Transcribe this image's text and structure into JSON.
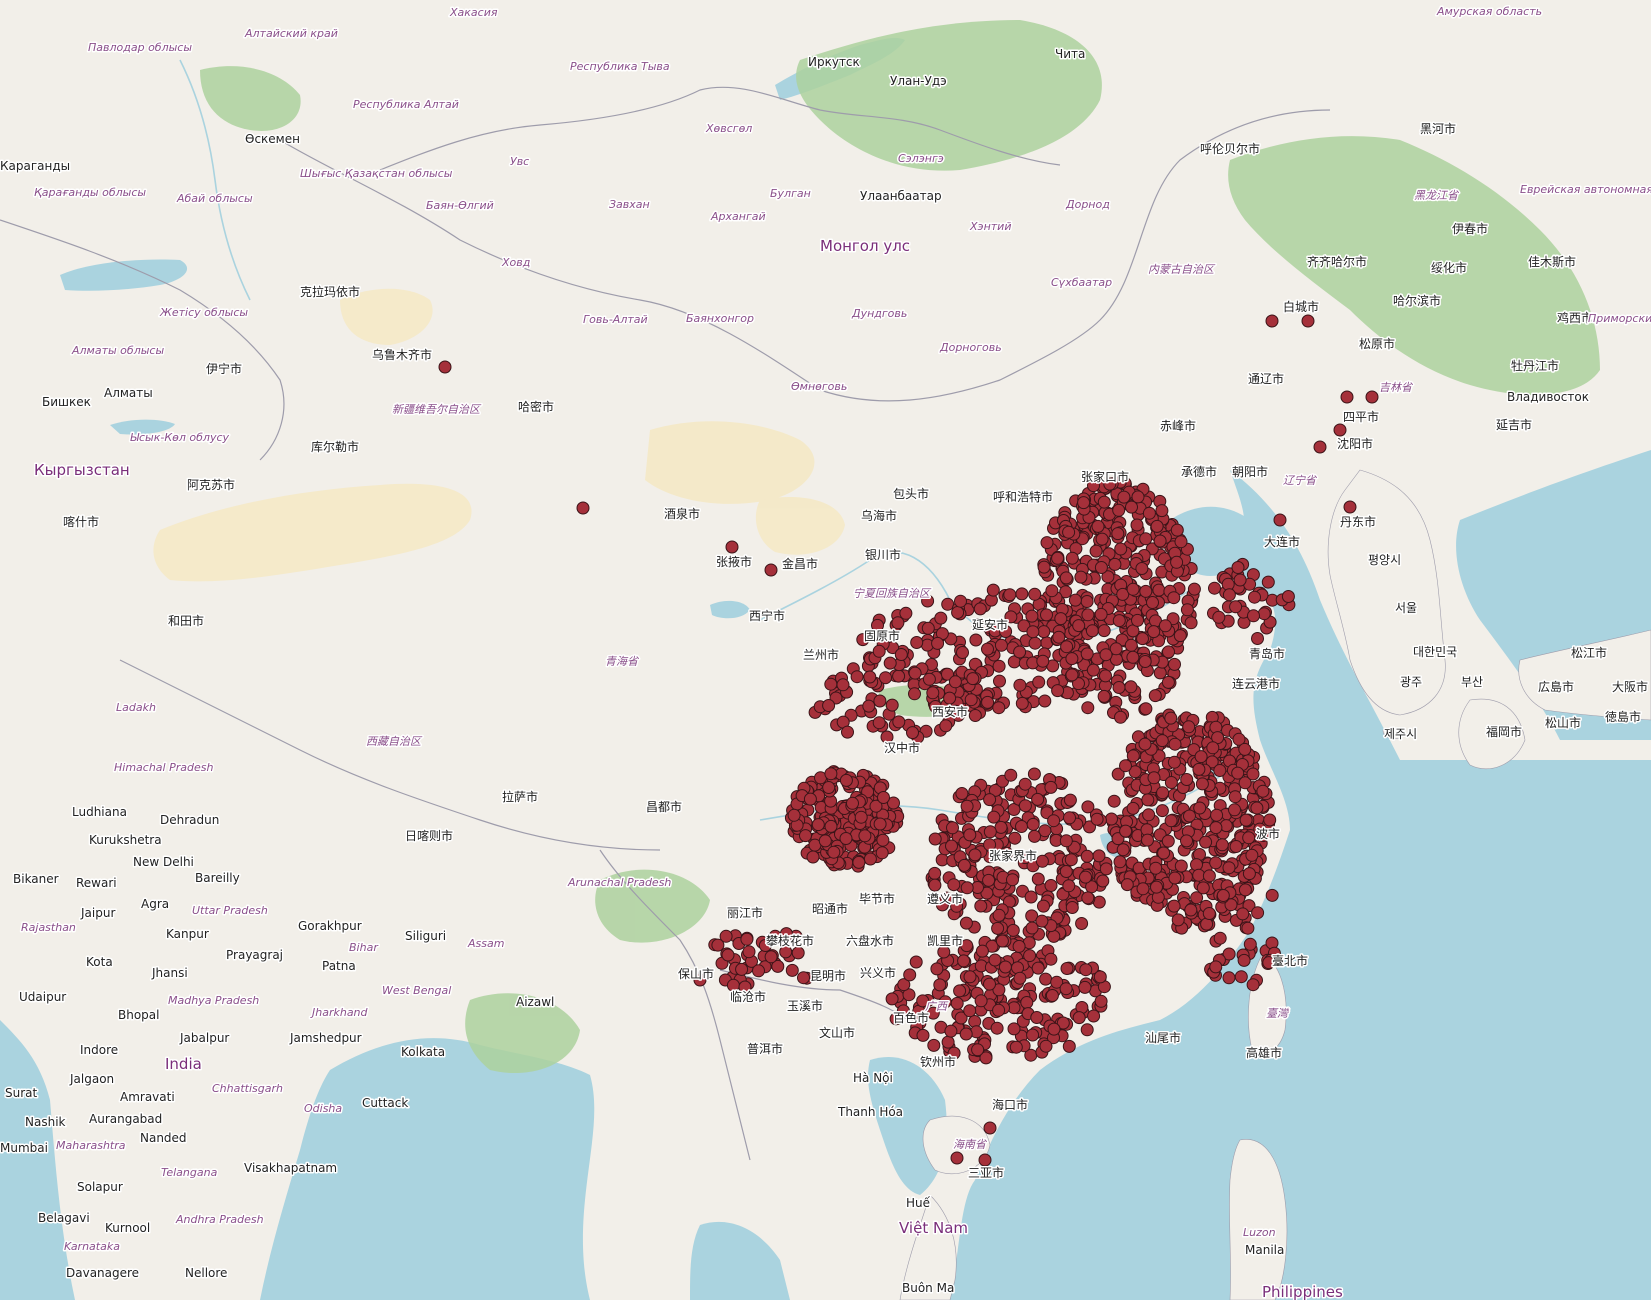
{
  "map": {
    "colors": {
      "land": "#f2efe9",
      "water": "#aad3df",
      "forest": "#add19e",
      "desert": "#f5e9c6",
      "border": "#9e9cab",
      "point_fill": "#a5303a",
      "point_stroke": "#3b1418"
    },
    "labels": {
      "ocean_vietnam": "Việt Nam",
      "country_mongolia": "Монгол улс",
      "country_kyrgyzstan": "Кыргызстан",
      "country_india": "India",
      "country_philippines": "Philippines",
      "city_irkutsk": "Иркутск",
      "city_chita": "Чита",
      "city_ulan_ude": "Улан-Удэ",
      "city_ulaanbaatar": "Улаанбаатар",
      "city_oskemen": "Өскемен",
      "city_karaganda": "Караганды",
      "city_bishkek": "Бишкек",
      "city_almaty": "Алматы",
      "city_vladivostok": "Владивосток",
      "city_karamay": "克拉玛依市",
      "city_urumqi": "乌鲁木齐市",
      "city_yining": "伊宁市",
      "city_korla": "库尔勒市",
      "city_hami": "哈密市",
      "city_aksu": "阿克苏市",
      "city_kashgar": "喀什市",
      "city_hotan": "和田市",
      "city_jiuquan": "酒泉市",
      "city_zhangye": "张掖市",
      "city_jinchang": "金昌市",
      "city_xining": "西宁市",
      "city_lanzhou": "兰州市",
      "city_baotou": "包头市",
      "city_hohhot": "呼和浩特市",
      "city_wuhai": "乌海市",
      "city_yinchuan": "银川市",
      "city_guyuan": "固原市",
      "city_yanan": "延安市",
      "city_xian": "西安市",
      "city_hanzhong": "汉中市",
      "city_zhangjiakou": "张家口市",
      "city_chengde": "承德市",
      "city_chaoyang": "朝阳市",
      "city_chifeng": "赤峰市",
      "city_tongliao": "通辽市",
      "city_hulunbuir": "呼伦贝尔市",
      "city_qiqihar": "齐齐哈尔市",
      "city_harbin": "哈尔滨市",
      "city_baicheng": "白城市",
      "city_songyuan": "松原市",
      "city_siping": "四平市",
      "city_shenyang": "沈阳市",
      "city_dandong": "丹东市",
      "city_dalian": "大连市",
      "city_qingdao": "青岛市",
      "city_lianyungang": "连云港市",
      "city_heihe": "黑河市",
      "city_yichun": "伊春市",
      "city_jiamusi": "佳木斯市",
      "city_suihua": "绥化市",
      "city_jixi": "鸡西市",
      "city_mudanjiang": "牡丹江市",
      "city_yanji": "延吉市",
      "city_lhasa": "拉萨市",
      "city_shigatse": "日喀则市",
      "city_qamdo": "昌都市",
      "city_lijiang": "丽江市",
      "city_panzhihua": "攀枝花市",
      "city_zhaotong": "昭通市",
      "city_liupanshui": "六盘水市",
      "city_bijie": "毕节市",
      "city_zunyi": "遵义市",
      "city_kaili": "凯里市",
      "city_baoshan": "保山市",
      "city_lincang": "临沧市",
      "city_kunming": "昆明市",
      "city_xingyi": "兴义市",
      "city_yuxi": "玉溪市",
      "city_wenshan": "文山市",
      "city_baise": "百色市",
      "city_puer": "普洱市",
      "city_qinzhou": "钦州市",
      "city_haikou": "海口市",
      "city_sanya": "三亚市",
      "city_zhangjiajie": "张家界市",
      "city_shantou": "汕尾市",
      "city_taipei": "臺北市",
      "city_kaohsiung": "高雄市",
      "city_ningbo": "波市",
      "city_seoul": "서울",
      "city_pyongyang": "평양시",
      "city_busan": "부산",
      "city_gwangju": "광주",
      "city_daejeon": "대한민국",
      "city_jeju": "제주시",
      "city_fukuoka": "福岡市",
      "city_hiroshima": "広島市",
      "city_osaka": "大阪市",
      "city_matsuyama": "松山市",
      "city_tokushima": "徳島市",
      "city_matsue": "松江市",
      "city_hanoi": "Hà Nội",
      "city_thanh_hoa": "Thanh Hóa",
      "city_hue": "Huế",
      "city_buon_ma": "Buôn Ma",
      "city_new_delhi": "New Delhi",
      "city_ludhiana": "Ludhiana",
      "city_dehradun": "Dehradun",
      "city_kurukshetra": "Kurukshetra",
      "city_bikaner": "Bikaner",
      "city_rewari": "Rewari",
      "city_bareilly": "Bareilly",
      "city_jaipur": "Jaipur",
      "city_agra": "Agra",
      "city_kanpur": "Kanpur",
      "city_gorakhpur": "Gorakhpur",
      "city_siliguri": "Siliguri",
      "city_kota": "Kota",
      "city_jhansi": "Jhansi",
      "city_prayagraj": "Prayagraj",
      "city_patna": "Patna",
      "city_udaipur": "Udaipur",
      "city_bhopal": "Bhopal",
      "city_jabalpur": "Jabalpur",
      "city_jamshedpur": "Jamshedpur",
      "city_kolkata": "Kolkata",
      "city_aizawl": "Aizawl",
      "city_indore": "Indore",
      "city_jalgaon": "Jalgaon",
      "city_surat": "Surat",
      "city_amravati": "Amravati",
      "city_cuttack": "Cuttack",
      "city_nashik": "Nashik",
      "city_aurangabad": "Aurangabad",
      "city_nanded": "Nanded",
      "city_mumbai": "Mumbai",
      "city_visakhapatnam": "Visakhapatnam",
      "city_solapur": "Solapur",
      "city_belagavi": "Belagavi",
      "city_kurnool": "Kurnool",
      "city_davanagere": "Davanagere",
      "city_nellore": "Nellore",
      "city_manila": "Manila",
      "region_xinjiang": "新疆维吾尔自治区",
      "region_xizang": "西藏自治区",
      "region_qinghai": "青海省",
      "region_ningxia": "宁夏回族自治区",
      "region_innermongolia": "内蒙古自治区",
      "region_heilongjiang": "黑龙江省",
      "region_jilin": "吉林省",
      "region_liaoning": "辽宁省",
      "region_guangxi": "广西",
      "region_hainan": "海南省",
      "region_taiwan": "臺灣",
      "region_hakasia": "Хакасия",
      "region_altai_krai": "Алтайский край",
      "region_altai_rep": "Республика Алтай",
      "region_tuva": "Республика Тыва",
      "region_pavlodar": "Павлодар облысы",
      "region_east_kaz": "Шығыс Қазақстан облысы",
      "region_abai": "Абай облысы",
      "region_karaganda": "Қарағанды облысы",
      "region_zhetisu": "Жетісу облысы",
      "region_almaty": "Алматы облысы",
      "region_issyk_kul": "Ысык-Көл облусу",
      "region_uvs": "Увс",
      "region_khovsgol": "Хөвсгөл",
      "region_bulgan": "Булган",
      "region_selenge": "Сэлэнгэ",
      "region_bayan_olgii": "Баян-Өлгий",
      "region_zavkhan": "Завхан",
      "region_arkhangai": "Архангай",
      "region_khovd": "Ховд",
      "region_govi_altai": "Говь-Алтай",
      "region_bayankhongor": "Баянхонгор",
      "region_dundgovi": "Дундговь",
      "region_dornod": "Дорнод",
      "region_khentii": "Хэнтий",
      "region_sukhbaatar": "Сүхбаатар",
      "region_dornogovi": "Дорноговь",
      "region_omnogovi": "Өмнөговь",
      "region_amur": "Амурская область",
      "region_jewish": "Еврейская автономная область",
      "region_primorsky": "Приморский край",
      "region_ladakh": "Ladakh",
      "region_himachal": "Himachal Pradesh",
      "region_uttar": "Uttar Pradesh",
      "region_rajasthan": "Rajasthan",
      "region_bihar": "Bihar",
      "region_madhya": "Madhya Pradesh",
      "region_jharkhand": "Jharkhand",
      "region_west_bengal": "West Bengal",
      "region_arunachal": "Arunachal Pradesh",
      "region_assam": "Assam",
      "region_chhattisgarh": "Chhattisgarh",
      "region_odisha": "Odisha",
      "region_maharashtra": "Maharashtra",
      "region_telangana": "Telangana",
      "region_andhra": "Andhra Pradesh",
      "region_karnataka": "Karnataka",
      "region_luzon": "Luzon"
    }
  }
}
